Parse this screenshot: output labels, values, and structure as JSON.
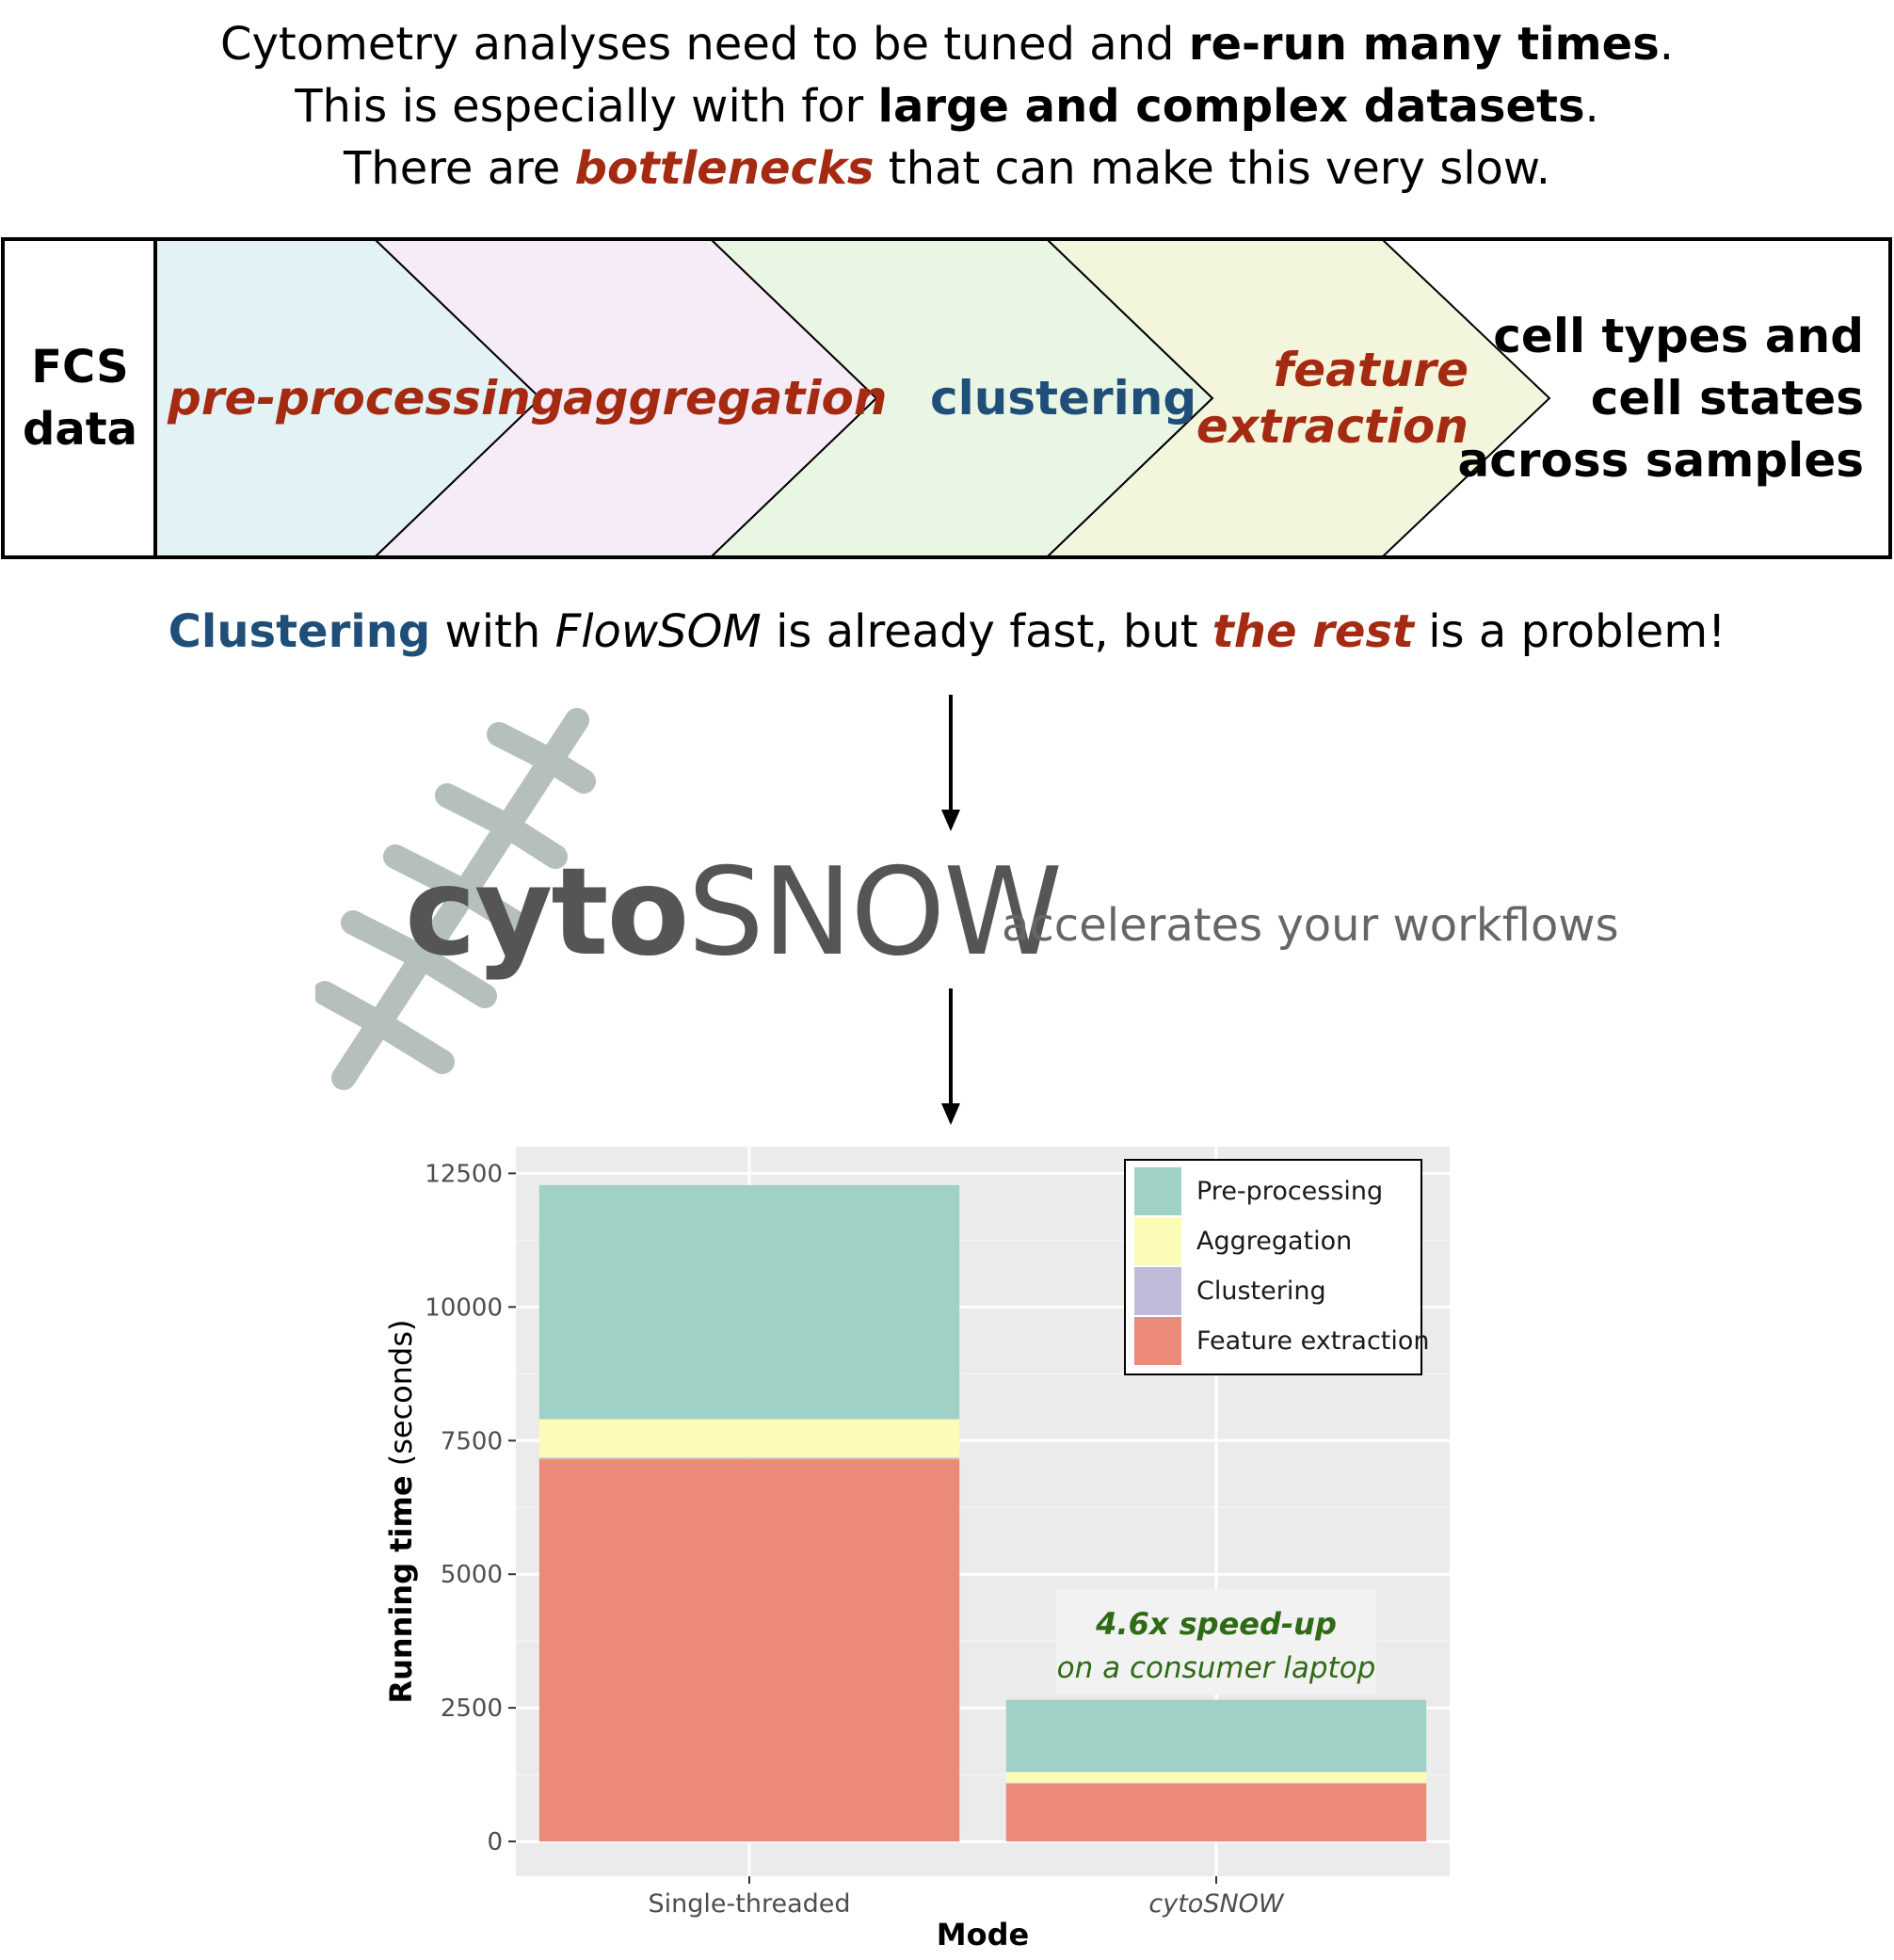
{
  "intro": {
    "line1_plain": "Cytometry analyses need to be tuned and ",
    "line1_bold": "re-run many times",
    "line1_end": ".",
    "line2_plain": "This is especially with for ",
    "line2_bold": "large and complex datasets",
    "line2_end": ".",
    "line3_plain": "There are ",
    "line3_red": "bottlenecks",
    "line3_end": " that can make this very slow."
  },
  "pipeline": {
    "input_line1": "FCS",
    "input_line2": "data",
    "stages": [
      {
        "label": "pre-processing",
        "color": "#e3f2f5"
      },
      {
        "label": "aggregation",
        "color": "#f6ecf7"
      },
      {
        "label": "clustering",
        "color": "#eaf6e4"
      },
      {
        "label_line1": "feature",
        "label_line2": "extraction",
        "color": "#f3f6dd"
      }
    ],
    "output_line1": "cell types and",
    "output_line2": "cell states",
    "output_line3": "across samples"
  },
  "statement": {
    "blue": "Clustering",
    "plain1": " with ",
    "italic": "FlowSOM",
    "plain2": " is already fast, but ",
    "red": "the rest",
    "plain3": " is a problem!"
  },
  "logo": {
    "cyto": "cyto",
    "snow": "SNOW",
    "tagline": "accelerates your workflows",
    "color": "#b5bfbc"
  },
  "chart_data": {
    "type": "bar",
    "stacked": true,
    "categories": [
      "Single-threaded",
      "cytoSNOW"
    ],
    "series": [
      {
        "name": "Feature extraction",
        "color": "#eb8a78",
        "values": [
          7150,
          1080
        ]
      },
      {
        "name": "Clustering",
        "color": "#bfbbd9",
        "values": [
          30,
          20
        ]
      },
      {
        "name": "Aggregation",
        "color": "#fdfcb6",
        "values": [
          720,
          200
        ]
      },
      {
        "name": "Pre-processing",
        "color": "#9fd1c6",
        "values": [
          4380,
          1350
        ]
      }
    ],
    "ylabel_bold": "Running time",
    "ylabel_plain": " (seconds)",
    "xlabel": "Mode",
    "ylim": [
      -650,
      13000
    ],
    "yticks": [
      0,
      2500,
      5000,
      7500,
      10000,
      12500
    ],
    "legend_position": "top-right",
    "grid": true,
    "annotation": {
      "line1": "4.6x speed-up",
      "line2": "on a consumer laptop",
      "color": "#2e6b14"
    }
  }
}
